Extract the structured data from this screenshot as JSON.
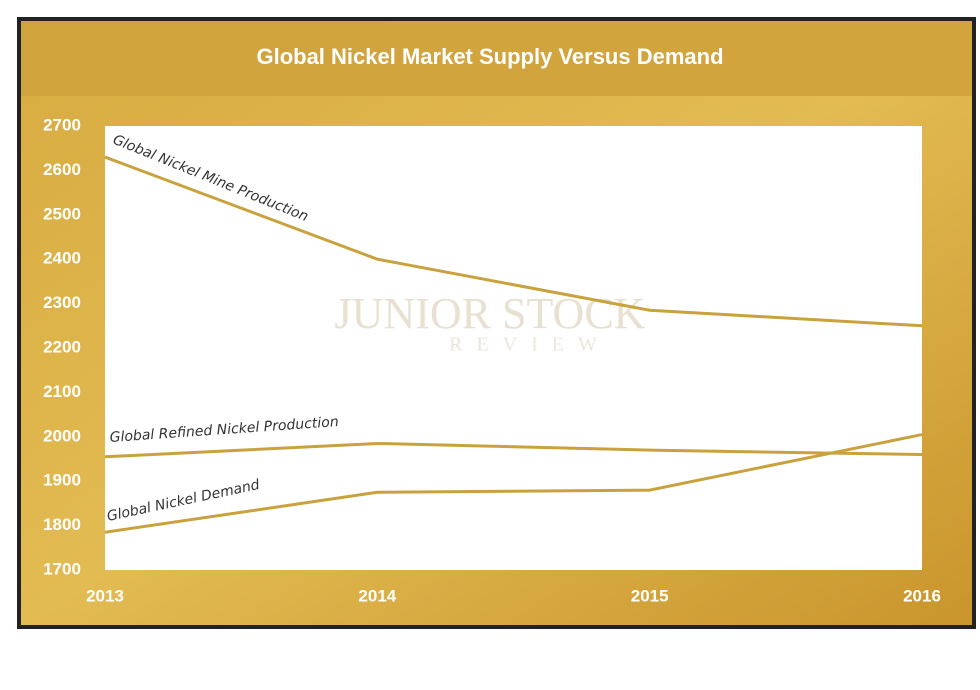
{
  "chart_data": {
    "type": "line",
    "title": "Global Nickel Market Supply Versus Demand",
    "watermark": "JUNIOR STOCK",
    "watermark_sub": "REVIEW",
    "x": [
      2013,
      2014,
      2015,
      2016
    ],
    "xlim": [
      2013,
      2016
    ],
    "xticks": [
      2013,
      2014,
      2015,
      2016
    ],
    "ylim": [
      1700,
      2700
    ],
    "yticks": [
      1700,
      1800,
      1900,
      2000,
      2100,
      2200,
      2300,
      2400,
      2500,
      2600,
      2700
    ],
    "grid": false,
    "series": [
      {
        "name": "Global Nickel Mine Production",
        "color": "#c9a23e",
        "values": [
          2630,
          2400,
          2285,
          2250
        ]
      },
      {
        "name": "Global Refined Nickel Production",
        "color": "#c9a23e",
        "values": [
          1955,
          1985,
          1970,
          1960
        ]
      },
      {
        "name": "Global Nickel Demand",
        "color": "#c9a23e",
        "values": [
          1785,
          1875,
          1880,
          2005
        ]
      }
    ]
  }
}
